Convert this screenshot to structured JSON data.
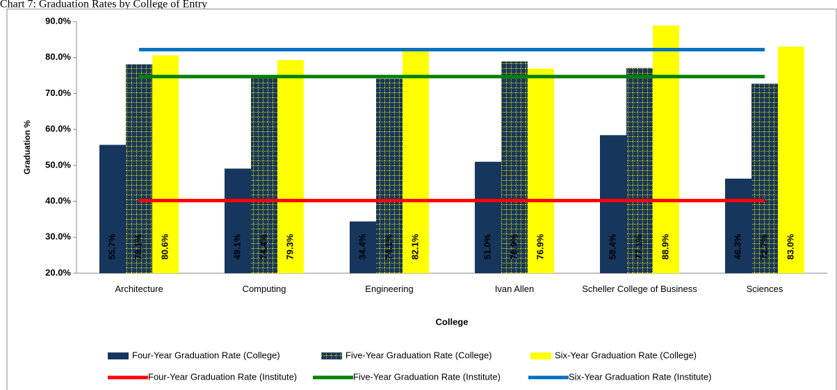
{
  "chart_data": {
    "type": "bar",
    "title": "Chart 7: Graduation Rates by College of Entry",
    "y_label": "Graduation %",
    "x_label": "College",
    "categories": [
      "Architecture",
      "Computing",
      "Engineering",
      "Ivan Allen",
      "Scheller College of Business",
      "Sciences"
    ],
    "ylim": [
      20,
      90
    ],
    "yticks": [
      {
        "value": 20,
        "label": "20.0%"
      },
      {
        "value": 30,
        "label": "30.0%"
      },
      {
        "value": 40,
        "label": "40.0%"
      },
      {
        "value": 50,
        "label": "50.0%"
      },
      {
        "value": 60,
        "label": "60.0%"
      },
      {
        "value": 70,
        "label": "70.0%"
      },
      {
        "value": 80,
        "label": "80.0%"
      },
      {
        "value": 90,
        "label": "90.0%"
      }
    ],
    "series": [
      {
        "name": "Four-Year Graduation Rate (College)",
        "type": "bar",
        "color": "#17365d",
        "values": [
          55.7,
          49.1,
          34.4,
          51.0,
          58.4,
          46.3
        ],
        "value_labels": [
          "55.7%",
          "49.1%",
          "34.4%",
          "51.0%",
          "58.4%",
          "46.3%"
        ]
      },
      {
        "name": "Five-Year Graduation Rate (College)",
        "type": "bar",
        "color": "#17365d",
        "hatch": "#d8d800",
        "values": [
          78.1,
          74.4,
          74.1,
          78.9,
          77.1,
          72.7
        ],
        "value_labels": [
          "78.1%",
          "74.4%",
          "74.1%",
          "78.9%",
          "77.1%",
          "72.7%"
        ]
      },
      {
        "name": "Six-Year Graduation Rate (College)",
        "type": "bar",
        "color": "#ffff00",
        "values": [
          80.6,
          79.3,
          82.1,
          76.9,
          88.9,
          83.0
        ],
        "value_labels": [
          "80.6%",
          "79.3%",
          "82.1%",
          "76.9%",
          "88.9%",
          "83.0%"
        ]
      },
      {
        "name": "Four-Year Graduation Rate (Institute)",
        "type": "line",
        "color": "#ff0000",
        "values": [
          40.2,
          40.2,
          40.2,
          40.2,
          40.2,
          40.2
        ]
      },
      {
        "name": "Five-Year Graduation Rate (Institute)",
        "type": "line",
        "color": "#008000",
        "values": [
          74.7,
          74.7,
          74.7,
          74.7,
          74.7,
          74.7
        ]
      },
      {
        "name": "Six-Year Graduation Rate (Institute)",
        "type": "line",
        "color": "#0070c0",
        "values": [
          82.2,
          82.2,
          82.2,
          82.2,
          82.2,
          82.2
        ]
      }
    ]
  }
}
